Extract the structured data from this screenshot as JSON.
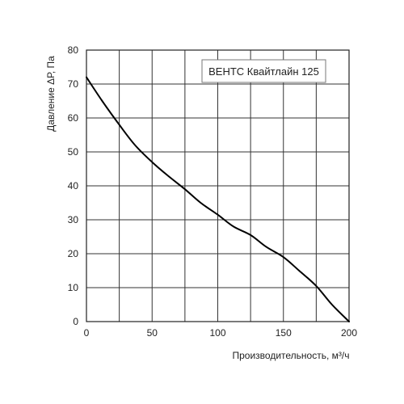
{
  "chart_data": {
    "type": "line",
    "title": "",
    "xlabel": "Производительность, м³/ч",
    "ylabel": "Давление ΔР, Па",
    "xlim": [
      0,
      200
    ],
    "ylim": [
      0,
      80
    ],
    "x_ticks": [
      "0",
      "50",
      "100",
      "150",
      "200"
    ],
    "y_ticks": [
      "0",
      "10",
      "20",
      "30",
      "40",
      "50",
      "60",
      "70",
      "80"
    ],
    "grid": true,
    "legend": {
      "position": "top-right",
      "label": "ВЕНТС Квайтлайн 125"
    },
    "series": [
      {
        "name": "ВЕНТС Квайтлайн 125",
        "color": "#000000",
        "x": [
          0,
          12,
          25,
          37,
          50,
          62,
          75,
          87,
          100,
          112,
          125,
          137,
          150,
          162,
          175,
          187,
          200
        ],
        "y": [
          72,
          65,
          58,
          52,
          47,
          43,
          39,
          35,
          31.5,
          28,
          25.5,
          22,
          19,
          15,
          10.5,
          5,
          0
        ]
      }
    ]
  }
}
